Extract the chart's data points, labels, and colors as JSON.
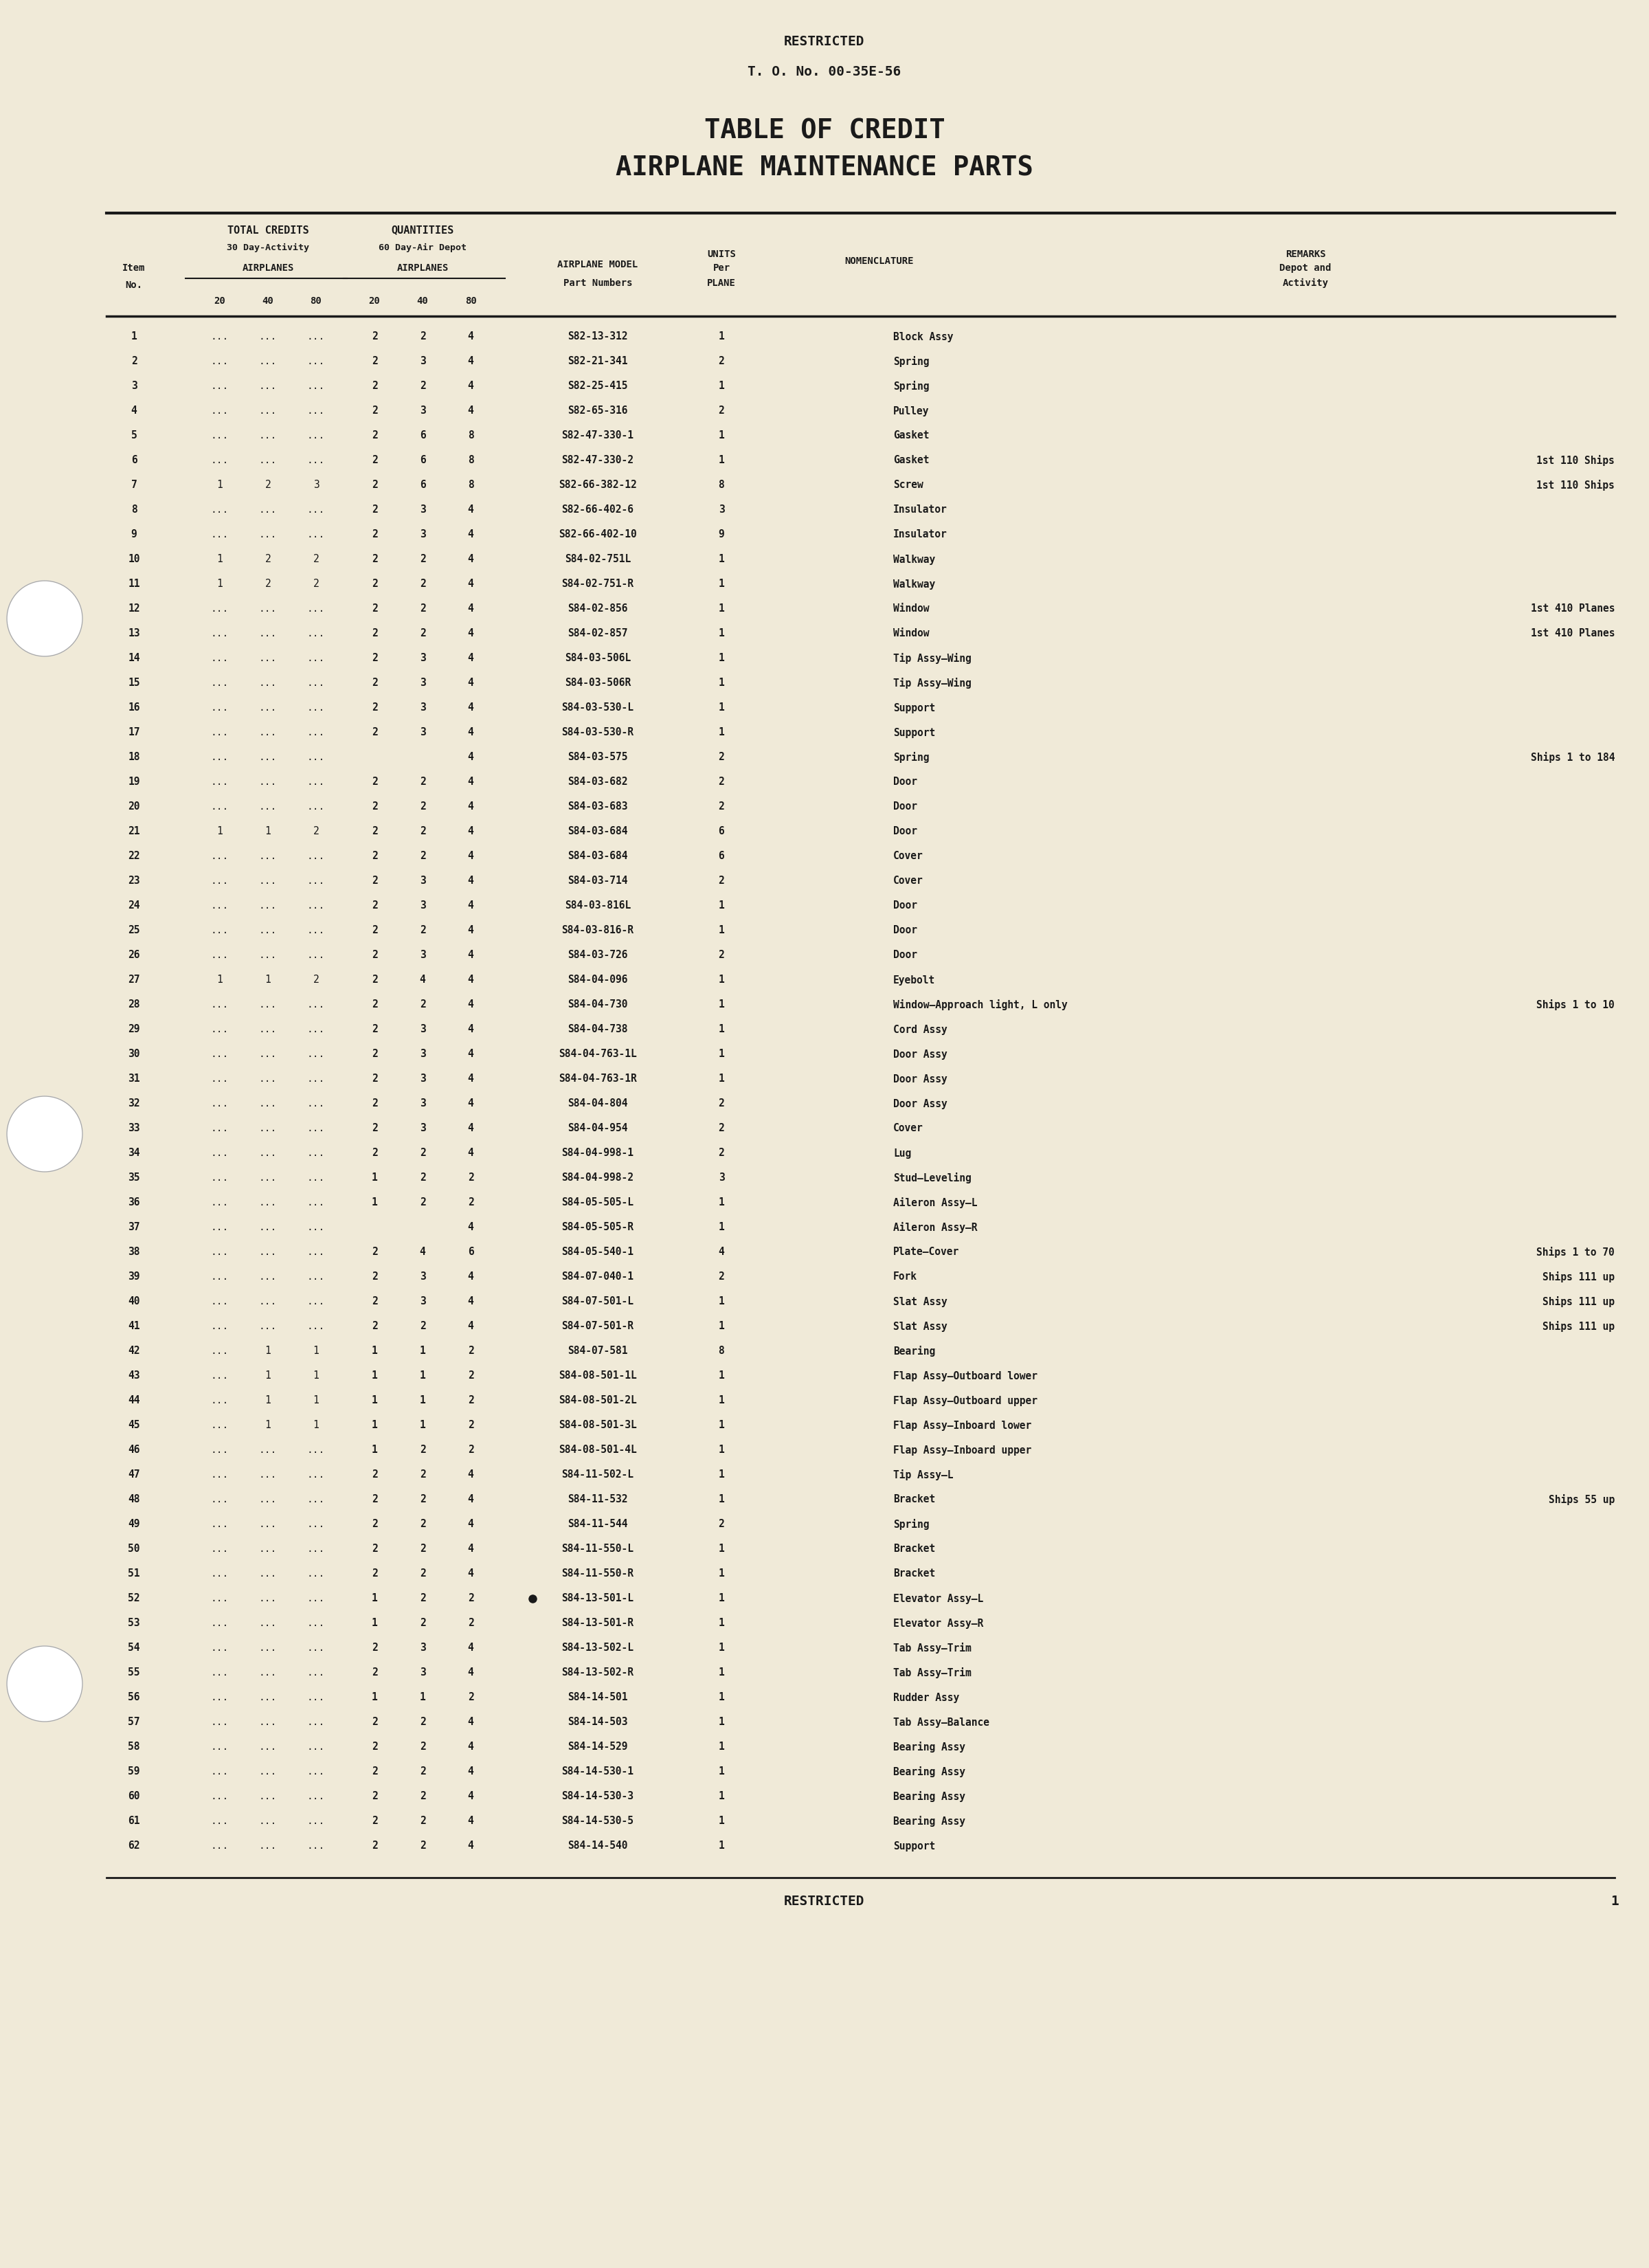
{
  "bg_color": "#f0ead8",
  "text_color": "#1a1a1a",
  "restricted_top": "RESTRICTED",
  "to_number": "T. O. No. 00-35E-56",
  "title1": "TABLE OF CREDIT",
  "title2": "AIRPLANE MAINTENANCE PARTS",
  "header": {
    "col1": "Item\nNo.",
    "total_credits": "TOTAL CREDITS",
    "tc_sub": "30 Day-Activity\nAIRPLANES",
    "quantities": "QUANTITIES",
    "q_sub": "60 Day-Air Depot\nAIRPLANES",
    "sub_cols": "20   40   80   20   40   80",
    "airplane_model": "AIRPLANE MODEL\nPart Numbers",
    "units": "UNITS\nPer\nPLANE",
    "nomenclature": "NOMENCLATURE",
    "remarks": "REMARKS\nDepot and\nActivity"
  },
  "rows": [
    {
      "no": "1",
      "tc20": "...",
      "tc40": "...",
      "tc80": "...",
      "q20": "2",
      "q40": "2",
      "q80": "4",
      "part": "S82-13-312",
      "units": "1",
      "nom": "Block Assy",
      "remarks": ""
    },
    {
      "no": "2",
      "tc20": "...",
      "tc40": "...",
      "tc80": "...",
      "q20": "2",
      "q40": "3",
      "q80": "4",
      "part": "S82-21-341",
      "units": "2",
      "nom": "Spring",
      "remarks": ""
    },
    {
      "no": "3",
      "tc20": "...",
      "tc40": "...",
      "tc80": "...",
      "q20": "2",
      "q40": "2",
      "q80": "4",
      "part": "S82-25-415",
      "units": "1",
      "nom": "Spring",
      "remarks": ""
    },
    {
      "no": "4",
      "tc20": "...",
      "tc40": "...",
      "tc80": "...",
      "q20": "2",
      "q40": "3",
      "q80": "4",
      "part": "S82-65-316",
      "units": "2",
      "nom": "Pulley",
      "remarks": ""
    },
    {
      "no": "5",
      "tc20": "...",
      "tc40": "...",
      "tc80": "...",
      "q20": "2",
      "q40": "6",
      "q80": "8",
      "part": "S82-47-330-1",
      "units": "1",
      "nom": "Gasket",
      "remarks": ""
    },
    {
      "no": "6",
      "tc20": "...",
      "tc40": "...",
      "tc80": "...",
      "q20": "2",
      "q40": "6",
      "q80": "8",
      "part": "S82-47-330-2",
      "units": "1",
      "nom": "Gasket",
      "remarks": "1st 110 Ships"
    },
    {
      "no": "7",
      "tc20": "1",
      "tc40": "2",
      "tc80": "3",
      "q20": "2",
      "q40": "6",
      "q80": "8",
      "part": "S82-66-382-12",
      "units": "8",
      "nom": "Screw",
      "remarks": "1st 110 Ships"
    },
    {
      "no": "8",
      "tc20": "...",
      "tc40": "...",
      "tc80": "...",
      "q20": "2",
      "q40": "3",
      "q80": "4",
      "part": "S82-66-402-6",
      "units": "3",
      "nom": "Insulator",
      "remarks": ""
    },
    {
      "no": "9",
      "tc20": "...",
      "tc40": "...",
      "tc80": "...",
      "q20": "2",
      "q40": "3",
      "q80": "4",
      "part": "S82-66-402-10",
      "units": "9",
      "nom": "Insulator",
      "remarks": ""
    },
    {
      "no": "10",
      "tc20": "1",
      "tc40": "2",
      "tc80": "2",
      "q20": "2",
      "q40": "2",
      "q80": "4",
      "part": "S84-02-751L",
      "units": "1",
      "nom": "Walkway",
      "remarks": ""
    },
    {
      "no": "11",
      "tc20": "1",
      "tc40": "2",
      "tc80": "2",
      "q20": "2",
      "q40": "2",
      "q80": "4",
      "part": "S84-02-751-R",
      "units": "1",
      "nom": "Walkway",
      "remarks": ""
    },
    {
      "no": "12",
      "tc20": "...",
      "tc40": "...",
      "tc80": "...",
      "q20": "2",
      "q40": "2",
      "q80": "4",
      "part": "S84-02-856",
      "units": "1",
      "nom": "Window",
      "remarks": "1st 410 Planes"
    },
    {
      "no": "13",
      "tc20": "...",
      "tc40": "...",
      "tc80": "...",
      "q20": "2",
      "q40": "2",
      "q80": "4",
      "part": "S84-02-857",
      "units": "1",
      "nom": "Window",
      "remarks": "1st 410 Planes"
    },
    {
      "no": "14",
      "tc20": "...",
      "tc40": "...",
      "tc80": "...",
      "q20": "2",
      "q40": "3",
      "q80": "4",
      "part": "S84-03-506L",
      "units": "1",
      "nom": "Tip Assy—Wing",
      "remarks": ""
    },
    {
      "no": "15",
      "tc20": "...",
      "tc40": "...",
      "tc80": "...",
      "q20": "2",
      "q40": "3",
      "q80": "4",
      "part": "S84-03-506R",
      "units": "1",
      "nom": "Tip Assy—Wing",
      "remarks": ""
    },
    {
      "no": "16",
      "tc20": "...",
      "tc40": "...",
      "tc80": "...",
      "q20": "2",
      "q40": "3",
      "q80": "4",
      "part": "S84-03-530-L",
      "units": "1",
      "nom": "Support",
      "remarks": ""
    },
    {
      "no": "17",
      "tc20": "...",
      "tc40": "...",
      "tc80": "...",
      "q20": "2",
      "q40": "3",
      "q80": "4",
      "part": "S84-03-530-R",
      "units": "1",
      "nom": "Support",
      "remarks": ""
    },
    {
      "no": "18",
      "tc20": "...",
      "tc40": "...",
      "tc80": "...",
      "q20": "",
      "q40": "",
      "q80": "4",
      "part": "S84-03-575",
      "units": "2",
      "nom": "Spring",
      "remarks": "Ships 1 to 184"
    },
    {
      "no": "19",
      "tc20": "...",
      "tc40": "...",
      "tc80": "...",
      "q20": "2",
      "q40": "2",
      "q80": "4",
      "part": "S84-03-682",
      "units": "2",
      "nom": "Door",
      "remarks": ""
    },
    {
      "no": "20",
      "tc20": "...",
      "tc40": "...",
      "tc80": "...",
      "q20": "2",
      "q40": "2",
      "q80": "4",
      "part": "S84-03-683",
      "units": "2",
      "nom": "Door",
      "remarks": ""
    },
    {
      "no": "21",
      "tc20": "1",
      "tc40": "1",
      "tc80": "2",
      "q20": "2",
      "q40": "2",
      "q80": "4",
      "part": "S84-03-684",
      "units": "6",
      "nom": "Door",
      "remarks": ""
    },
    {
      "no": "22",
      "tc20": "...",
      "tc40": "...",
      "tc80": "...",
      "q20": "2",
      "q40": "2",
      "q80": "4",
      "part": "S84-03-684",
      "units": "6",
      "nom": "Cover",
      "remarks": ""
    },
    {
      "no": "23",
      "tc20": "...",
      "tc40": "...",
      "tc80": "...",
      "q20": "2",
      "q40": "3",
      "q80": "4",
      "part": "S84-03-714",
      "units": "2",
      "nom": "Cover",
      "remarks": ""
    },
    {
      "no": "24",
      "tc20": "...",
      "tc40": "...",
      "tc80": "...",
      "q20": "2",
      "q40": "3",
      "q80": "4",
      "part": "S84-03-816L",
      "units": "1",
      "nom": "Door",
      "remarks": ""
    },
    {
      "no": "25",
      "tc20": "...",
      "tc40": "...",
      "tc80": "...",
      "q20": "2",
      "q40": "2",
      "q80": "4",
      "part": "S84-03-816-R",
      "units": "1",
      "nom": "Door",
      "remarks": ""
    },
    {
      "no": "26",
      "tc20": "...",
      "tc40": "...",
      "tc80": "...",
      "q20": "2",
      "q40": "3",
      "q80": "4",
      "part": "S84-03-726",
      "units": "2",
      "nom": "Door",
      "remarks": ""
    },
    {
      "no": "27",
      "tc20": "1",
      "tc40": "1",
      "tc80": "2",
      "q20": "2",
      "q40": "4",
      "q80": "4",
      "part": "S84-04-096",
      "units": "1",
      "nom": "Eyebolt",
      "remarks": ""
    },
    {
      "no": "28",
      "tc20": "...",
      "tc40": "...",
      "tc80": "...",
      "q20": "2",
      "q40": "2",
      "q80": "4",
      "part": "S84-04-730",
      "units": "1",
      "nom": "Window—Approach light, L only",
      "remarks": "Ships 1 to 10"
    },
    {
      "no": "29",
      "tc20": "...",
      "tc40": "...",
      "tc80": "...",
      "q20": "2",
      "q40": "3",
      "q80": "4",
      "part": "S84-04-738",
      "units": "1",
      "nom": "Cord Assy",
      "remarks": ""
    },
    {
      "no": "30",
      "tc20": "...",
      "tc40": "...",
      "tc80": "...",
      "q20": "2",
      "q40": "3",
      "q80": "4",
      "part": "S84-04-763-1L",
      "units": "1",
      "nom": "Door Assy",
      "remarks": ""
    },
    {
      "no": "31",
      "tc20": "...",
      "tc40": "...",
      "tc80": "...",
      "q20": "2",
      "q40": "3",
      "q80": "4",
      "part": "S84-04-763-1R",
      "units": "1",
      "nom": "Door Assy",
      "remarks": ""
    },
    {
      "no": "32",
      "tc20": "...",
      "tc40": "...",
      "tc80": "...",
      "q20": "2",
      "q40": "3",
      "q80": "4",
      "part": "S84-04-804",
      "units": "2",
      "nom": "Door Assy",
      "remarks": ""
    },
    {
      "no": "33",
      "tc20": "...",
      "tc40": "...",
      "tc80": "...",
      "q20": "2",
      "q40": "3",
      "q80": "4",
      "part": "S84-04-954",
      "units": "2",
      "nom": "Cover",
      "remarks": ""
    },
    {
      "no": "34",
      "tc20": "...",
      "tc40": "...",
      "tc80": "...",
      "q20": "2",
      "q40": "2",
      "q80": "4",
      "part": "S84-04-998-1",
      "units": "2",
      "nom": "Lug",
      "remarks": ""
    },
    {
      "no": "35",
      "tc20": "...",
      "tc40": "...",
      "tc80": "...",
      "q20": "1",
      "q40": "2",
      "q80": "2",
      "part": "S84-04-998-2",
      "units": "3",
      "nom": "Stud—Leveling",
      "remarks": ""
    },
    {
      "no": "36",
      "tc20": "...",
      "tc40": "...",
      "tc80": "...",
      "q20": "1",
      "q40": "2",
      "q80": "2",
      "part": "S84-05-505-L",
      "units": "1",
      "nom": "Aileron Assy—L",
      "remarks": ""
    },
    {
      "no": "37",
      "tc20": "...",
      "tc40": "...",
      "tc80": "...",
      "q20": "",
      "q40": "",
      "q80": "4",
      "part": "S84-05-505-R",
      "units": "1",
      "nom": "Aileron Assy—R",
      "remarks": ""
    },
    {
      "no": "38",
      "tc20": "...",
      "tc40": "...",
      "tc80": "...",
      "q20": "2",
      "q40": "4",
      "q80": "6",
      "part": "S84-05-540-1",
      "units": "4",
      "nom": "Plate—Cover",
      "remarks": "Ships 1 to 70"
    },
    {
      "no": "39",
      "tc20": "...",
      "tc40": "...",
      "tc80": "...",
      "q20": "2",
      "q40": "3",
      "q80": "4",
      "part": "S84-07-040-1",
      "units": "2",
      "nom": "Fork",
      "remarks": "Ships 111 up"
    },
    {
      "no": "40",
      "tc20": "...",
      "tc40": "...",
      "tc80": "...",
      "q20": "2",
      "q40": "3",
      "q80": "4",
      "part": "S84-07-501-L",
      "units": "1",
      "nom": "Slat Assy",
      "remarks": "Ships 111 up"
    },
    {
      "no": "41",
      "tc20": "...",
      "tc40": "...",
      "tc80": "...",
      "q20": "2",
      "q40": "2",
      "q80": "4",
      "part": "S84-07-501-R",
      "units": "1",
      "nom": "Slat Assy",
      "remarks": "Ships 111 up"
    },
    {
      "no": "42",
      "tc20": "...",
      "tc40": "1",
      "tc80": "1",
      "q20": "1",
      "q40": "1",
      "q80": "2",
      "part": "S84-07-581",
      "units": "8",
      "nom": "Bearing",
      "remarks": ""
    },
    {
      "no": "43",
      "tc20": "...",
      "tc40": "1",
      "tc80": "1",
      "q20": "1",
      "q40": "1",
      "q80": "2",
      "part": "S84-08-501-1L",
      "units": "1",
      "nom": "Flap Assy—Outboard lower",
      "remarks": ""
    },
    {
      "no": "44",
      "tc20": "...",
      "tc40": "1",
      "tc80": "1",
      "q20": "1",
      "q40": "1",
      "q80": "2",
      "part": "S84-08-501-2L",
      "units": "1",
      "nom": "Flap Assy—Outboard upper",
      "remarks": ""
    },
    {
      "no": "45",
      "tc20": "...",
      "tc40": "1",
      "tc80": "1",
      "q20": "1",
      "q40": "1",
      "q80": "2",
      "part": "S84-08-501-3L",
      "units": "1",
      "nom": "Flap Assy—Inboard lower",
      "remarks": ""
    },
    {
      "no": "46",
      "tc20": "...",
      "tc40": "...",
      "tc80": "...",
      "q20": "1",
      "q40": "2",
      "q80": "2",
      "part": "S84-08-501-4L",
      "units": "1",
      "nom": "Flap Assy—Inboard upper",
      "remarks": ""
    },
    {
      "no": "47",
      "tc20": "...",
      "tc40": "...",
      "tc80": "...",
      "q20": "2",
      "q40": "2",
      "q80": "4",
      "part": "S84-11-502-L",
      "units": "1",
      "nom": "Tip Assy—L",
      "remarks": ""
    },
    {
      "no": "48",
      "tc20": "...",
      "tc40": "...",
      "tc80": "...",
      "q20": "2",
      "q40": "2",
      "q80": "4",
      "part": "S84-11-532",
      "units": "1",
      "nom": "Bracket",
      "remarks": "Ships 55 up"
    },
    {
      "no": "49",
      "tc20": "...",
      "tc40": "...",
      "tc80": "...",
      "q20": "2",
      "q40": "2",
      "q80": "4",
      "part": "S84-11-544",
      "units": "2",
      "nom": "Spring",
      "remarks": ""
    },
    {
      "no": "50",
      "tc20": "...",
      "tc40": "...",
      "tc80": "...",
      "q20": "2",
      "q40": "2",
      "q80": "4",
      "part": "S84-11-550-L",
      "units": "1",
      "nom": "Bracket",
      "remarks": ""
    },
    {
      "no": "51",
      "tc20": "...",
      "tc40": "...",
      "tc80": "...",
      "q20": "2",
      "q40": "2",
      "q80": "4",
      "part": "S84-11-550-R",
      "units": "1",
      "nom": "Bracket",
      "remarks": ""
    },
    {
      "no": "52",
      "tc20": "...",
      "tc40": "...",
      "tc80": "...",
      "q20": "1",
      "q40": "2",
      "q80": "2",
      "part": "S84-13-501-L",
      "units": "1",
      "nom": "Elevator Assy—L",
      "remarks": ""
    },
    {
      "no": "53",
      "tc20": "...",
      "tc40": "...",
      "tc80": "...",
      "q20": "1",
      "q40": "2",
      "q80": "2",
      "part": "S84-13-501-R",
      "units": "1",
      "nom": "Elevator Assy—R",
      "remarks": ""
    },
    {
      "no": "54",
      "tc20": "...",
      "tc40": "...",
      "tc80": "...",
      "q20": "2",
      "q40": "3",
      "q80": "4",
      "part": "S84-13-502-L",
      "units": "1",
      "nom": "Tab Assy—Trim",
      "remarks": ""
    },
    {
      "no": "55",
      "tc20": "...",
      "tc40": "...",
      "tc80": "...",
      "q20": "2",
      "q40": "3",
      "q80": "4",
      "part": "S84-13-502-R",
      "units": "1",
      "nom": "Tab Assy—Trim",
      "remarks": ""
    },
    {
      "no": "56",
      "tc20": "...",
      "tc40": "...",
      "tc80": "...",
      "q20": "1",
      "q40": "1",
      "q80": "2",
      "part": "S84-14-501",
      "units": "1",
      "nom": "Rudder Assy",
      "remarks": ""
    },
    {
      "no": "57",
      "tc20": "...",
      "tc40": "...",
      "tc80": "...",
      "q20": "2",
      "q40": "2",
      "q80": "4",
      "part": "S84-14-503",
      "units": "1",
      "nom": "Tab Assy—Balance",
      "remarks": ""
    },
    {
      "no": "58",
      "tc20": "...",
      "tc40": "...",
      "tc80": "...",
      "q20": "2",
      "q40": "2",
      "q80": "4",
      "part": "S84-14-529",
      "units": "1",
      "nom": "Bearing Assy",
      "remarks": ""
    },
    {
      "no": "59",
      "tc20": "...",
      "tc40": "...",
      "tc80": "...",
      "q20": "2",
      "q40": "2",
      "q80": "4",
      "part": "S84-14-530-1",
      "units": "1",
      "nom": "Bearing Assy",
      "remarks": ""
    },
    {
      "no": "60",
      "tc20": "...",
      "tc40": "...",
      "tc80": "...",
      "q20": "2",
      "q40": "2",
      "q80": "4",
      "part": "S84-14-530-3",
      "units": "1",
      "nom": "Bearing Assy",
      "remarks": ""
    },
    {
      "no": "61",
      "tc20": "...",
      "tc40": "...",
      "tc80": "...",
      "q20": "2",
      "q40": "2",
      "q80": "4",
      "part": "S84-14-530-5",
      "units": "1",
      "nom": "Bearing Assy",
      "remarks": ""
    },
    {
      "no": "62",
      "tc20": "...",
      "tc40": "...",
      "tc80": "...",
      "q20": "2",
      "q40": "2",
      "q80": "4",
      "part": "S84-14-540",
      "units": "1",
      "nom": "Support",
      "remarks": ""
    }
  ],
  "footer_restricted": "RESTRICTED",
  "page_number": "1"
}
